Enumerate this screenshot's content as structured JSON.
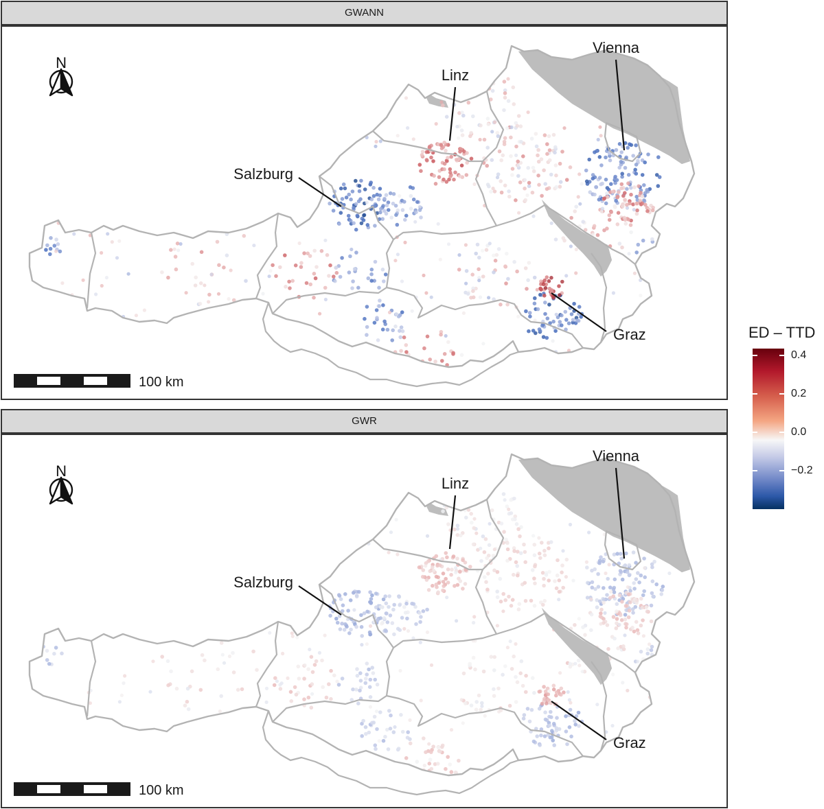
{
  "panels": [
    {
      "title": "GWANN",
      "scale_label": "100 km",
      "north_label": "N",
      "cities": [
        "Vienna",
        "Linz",
        "Salzburg",
        "Graz"
      ],
      "intensity": 1.0
    },
    {
      "title": "GWR",
      "scale_label": "100 km",
      "north_label": "N",
      "cities": [
        "Vienna",
        "Linz",
        "Salzburg",
        "Graz"
      ],
      "intensity": 0.45
    }
  ],
  "legend": {
    "title": "ED – TTD",
    "ticks": [
      "0.4",
      "0.2",
      "0.0",
      "−0.2"
    ],
    "tick_values": [
      0.4,
      0.2,
      0.0,
      -0.2
    ],
    "range": [
      -0.4,
      0.45
    ],
    "colors": {
      "high": "#67000d",
      "mid": "#f7f7f7",
      "low": "#053061"
    }
  },
  "map_style": {
    "border_color": "#b3b3b3",
    "neighbor_fill": "#bdbdbd"
  }
}
